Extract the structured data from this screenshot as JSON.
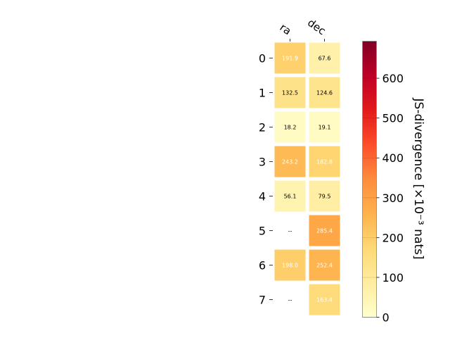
{
  "chart_data": {
    "type": "heatmap",
    "columns": [
      "ra",
      "dec"
    ],
    "rows": [
      "0",
      "1",
      "2",
      "3",
      "4",
      "5",
      "6",
      "7"
    ],
    "values": [
      [
        191.9,
        67.6
      ],
      [
        132.5,
        124.6
      ],
      [
        18.2,
        19.1
      ],
      [
        243.2,
        182.8
      ],
      [
        56.1,
        79.5
      ],
      [
        null,
        285.4
      ],
      [
        198.0,
        252.4
      ],
      [
        null,
        163.4
      ]
    ],
    "cell_labels": [
      [
        "191.9",
        "67.6"
      ],
      [
        "132.5",
        "124.6"
      ],
      [
        "18.2",
        "19.1"
      ],
      [
        "243.2",
        "182.8"
      ],
      [
        "56.1",
        "79.5"
      ],
      [
        "--",
        "285.4"
      ],
      [
        "198.0",
        "252.4"
      ],
      [
        "--",
        "163.4"
      ]
    ],
    "colorbar": {
      "label": "JS-divergence [×10⁻³ nats]",
      "ticks": [
        0,
        100,
        200,
        300,
        400,
        500,
        600
      ],
      "range": [
        0,
        693
      ],
      "colormap": "YlOrRd"
    }
  }
}
